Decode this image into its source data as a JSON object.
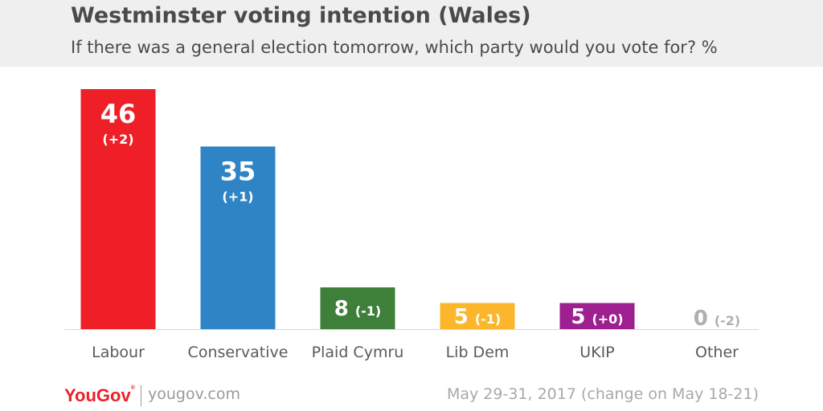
{
  "title": "Westminster voting intention (Wales)",
  "subtitle": "If there was a general election tomorrow, which party would you vote for? %",
  "footer": {
    "brand": "YouGov",
    "website": "yougov.com",
    "date_note": "May 29-31, 2017 (change on May 18-21)"
  },
  "chart_data": {
    "type": "bar",
    "title": "Westminster voting intention (Wales)",
    "subtitle": "If there was a general election tomorrow, which party would you vote for? %",
    "categories": [
      "Labour",
      "Conservative",
      "Plaid Cymru",
      "Lib Dem",
      "UKIP",
      "Other"
    ],
    "values": [
      46,
      35,
      8,
      5,
      5,
      0
    ],
    "changes": [
      "(+2)",
      "(+1)",
      "(-1)",
      "(-1)",
      "(+0)",
      "(-2)"
    ],
    "colors": [
      "#ee1f26",
      "#2f84c5",
      "#3e7f3a",
      "#fbb62b",
      "#9e1f8f",
      "#b0b0b0"
    ],
    "label_positions": [
      "inside-stacked",
      "inside-stacked",
      "inside-inline",
      "inside-inline",
      "inside-inline",
      "outside-inline"
    ],
    "ylim": [
      0,
      46
    ],
    "grid": false,
    "legend": "none",
    "xlabel": "",
    "ylabel": ""
  }
}
